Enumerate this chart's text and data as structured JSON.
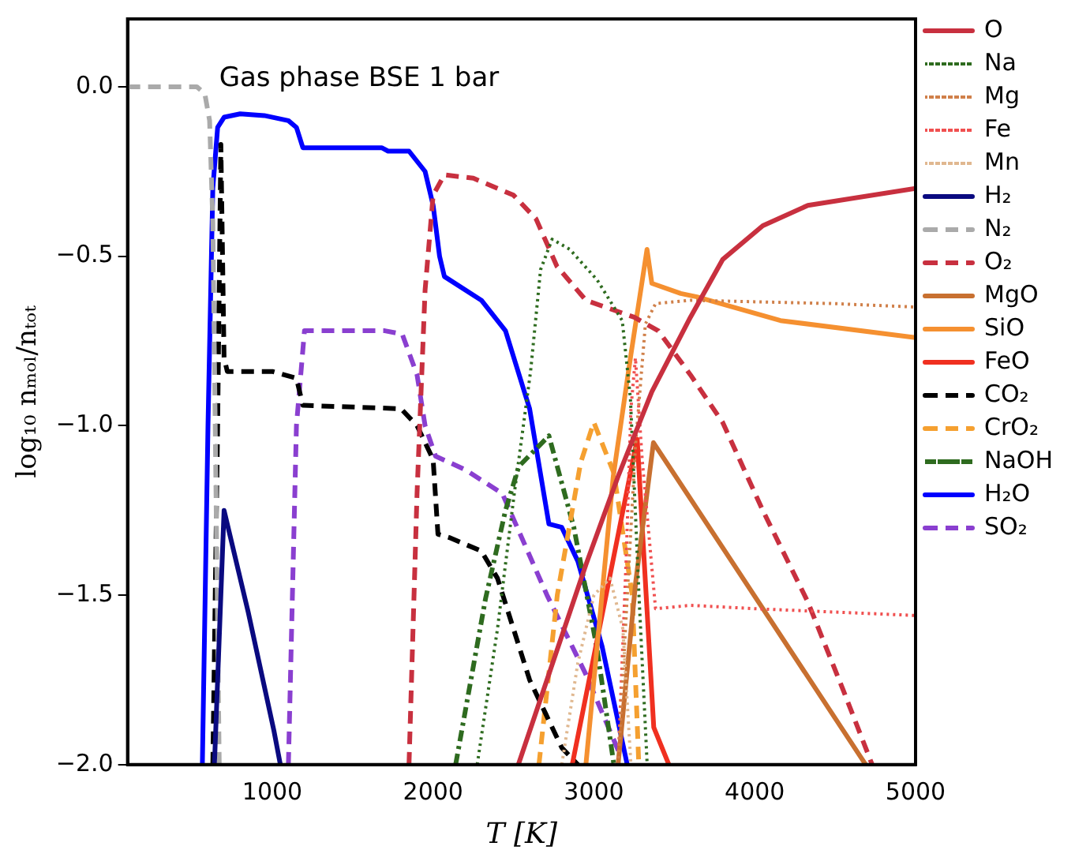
{
  "chart_data": {
    "type": "line",
    "title": "Gas phase BSE 1 bar",
    "xlabel": "T [K]",
    "ylabel": "log₁₀ nₘₒₗ/nₜₒₜ",
    "xlim": [
      100,
      5000
    ],
    "xticks": [
      1000,
      2000,
      3000,
      4000,
      5000
    ],
    "ylim": [
      -2,
      0.2
    ],
    "yticks": [
      {
        "value": -2,
        "label": "−2.0"
      },
      {
        "value": -1.5,
        "label": "−1.5"
      },
      {
        "value": -1,
        "label": "−1.0"
      },
      {
        "value": -0.5,
        "label": "−0.5"
      },
      {
        "value": 0,
        "label": "0.0"
      }
    ],
    "grid": false,
    "legend": "right",
    "marker": "none",
    "series": [
      {
        "name": "O",
        "color": "#c8303f",
        "line_style": "solid",
        "x": [
          2530,
          2950,
          3150,
          3360,
          3600,
          3800,
          4050,
          4330,
          5000
        ],
        "values": [
          -2,
          -1.41,
          -1.15,
          -0.9,
          -0.68,
          -0.51,
          -0.41,
          -0.35,
          -0.3
        ]
      },
      {
        "name": "Na",
        "color": "#2e6b1f",
        "line_style": "dotted",
        "x": [
          2274,
          2400,
          2502,
          2606,
          2668,
          2740,
          2850,
          3020,
          3176,
          3227,
          3280,
          3331
        ],
        "values": [
          -2,
          -1.6,
          -1.21,
          -0.84,
          -0.54,
          -0.45,
          -0.48,
          -0.57,
          -0.69,
          -0.92,
          -1.5,
          -2
        ]
      },
      {
        "name": "Mg",
        "color": "#d0804a",
        "line_style": "dotted",
        "x": [
          3150,
          3258,
          3320,
          3383,
          3600,
          4500,
          5000
        ],
        "values": [
          -2,
          -1.06,
          -0.7,
          -0.64,
          -0.63,
          -0.64,
          -0.65
        ]
      },
      {
        "name": "Fe",
        "color": "#f05050",
        "line_style": "dotted",
        "x": [
          3150,
          3200,
          3230,
          3258,
          3300,
          3383,
          3600,
          4000,
          5000
        ],
        "values": [
          -2,
          -1.4,
          -0.95,
          -0.8,
          -1.1,
          -1.54,
          -1.53,
          -1.54,
          -1.56
        ]
      },
      {
        "name": "Mn",
        "color": "#e0b890",
        "line_style": "dotted",
        "x": [
          2800,
          2900,
          3000,
          3100,
          3180,
          3230
        ],
        "values": [
          -2,
          -1.7,
          -1.5,
          -1.45,
          -1.6,
          -2
        ]
      },
      {
        "name": "H₂",
        "color": "#0a0a80",
        "line_style": "solid",
        "x": [
          640,
          700,
          850,
          1010,
          1050
        ],
        "values": [
          -2,
          -1.25,
          -1.55,
          -1.9,
          -2
        ]
      },
      {
        "name": "N₂",
        "color": "#aaaaaa",
        "line_style": "dashed",
        "x": [
          100,
          530,
          580,
          610,
          630,
          645,
          660,
          670
        ],
        "values": [
          0,
          0,
          -0.02,
          -0.1,
          -0.4,
          -1,
          -1.6,
          -2
        ]
      },
      {
        "name": "O₂",
        "color": "#c8303f",
        "line_style": "dashed",
        "x": [
          1850,
          1900,
          1950,
          2000,
          2070,
          2250,
          2500,
          2640,
          2770,
          2950,
          3250,
          3400,
          3600,
          3800,
          4050,
          4330,
          4550,
          4730
        ],
        "values": [
          -2,
          -1.2,
          -0.6,
          -0.32,
          -0.26,
          -0.27,
          -0.32,
          -0.39,
          -0.53,
          -0.63,
          -0.68,
          -0.72,
          -0.85,
          -0.99,
          -1.25,
          -1.52,
          -1.78,
          -2
        ]
      },
      {
        "name": "MgO",
        "color": "#c87030",
        "line_style": "solid",
        "x": [
          3150,
          3260,
          3370,
          4690
        ],
        "values": [
          -2,
          -1.46,
          -1.05,
          -2
        ]
      },
      {
        "name": "SiO",
        "color": "#f59030",
        "line_style": "solid",
        "x": [
          2950,
          3120,
          3230,
          3330,
          3360,
          3540,
          3640,
          4160,
          5000
        ],
        "values": [
          -2,
          -1.15,
          -0.79,
          -0.48,
          -0.58,
          -0.61,
          -0.62,
          -0.69,
          -0.74
        ]
      },
      {
        "name": "FeO",
        "color": "#f03020",
        "line_style": "solid",
        "x": [
          2865,
          3269,
          3372,
          3466
        ],
        "values": [
          -2,
          -1.04,
          -1.89,
          -2
        ]
      },
      {
        "name": "CO₂",
        "color": "#000000",
        "line_style": "dashed",
        "x": [
          630,
          660,
          680,
          700,
          720,
          1000,
          1150,
          1190,
          1800,
          1900,
          2000,
          2030,
          2100,
          2300,
          2400,
          2500,
          2600,
          2700,
          2800,
          2900
        ],
        "values": [
          -2,
          -1,
          -0.17,
          -0.8,
          -0.84,
          -0.84,
          -0.86,
          -0.94,
          -0.95,
          -1,
          -1.1,
          -1.32,
          -1.33,
          -1.37,
          -1.45,
          -1.6,
          -1.75,
          -1.85,
          -1.95,
          -2
        ]
      },
      {
        "name": "CrO₂",
        "color": "#f5a030",
        "line_style": "dashed",
        "x": [
          2658,
          2772,
          2917,
          2999,
          3124,
          3238,
          3279
        ],
        "values": [
          -2,
          -1.5,
          -1.11,
          -0.99,
          -1.14,
          -1.5,
          -2
        ]
      },
      {
        "name": "NaOH",
        "color": "#2e6b1f",
        "line_style": "dashdot",
        "x": [
          2140,
          2326,
          2450,
          2533,
          2720,
          2875,
          3020,
          3124
        ],
        "values": [
          -2,
          -1.51,
          -1.25,
          -1.12,
          -1.03,
          -1.3,
          -1.66,
          -2
        ]
      },
      {
        "name": "H₂O",
        "color": "#0000ff",
        "line_style": "solid",
        "x": [
          565,
          600,
          630,
          660,
          700,
          800,
          950,
          1100,
          1150,
          1190,
          1680,
          1720,
          1850,
          1950,
          2000,
          2040,
          2070,
          2300,
          2450,
          2600,
          2720,
          2800,
          2900,
          3050,
          3207
        ],
        "values": [
          -2,
          -1,
          -0.3,
          -0.12,
          -0.09,
          -0.08,
          -0.085,
          -0.1,
          -0.12,
          -0.18,
          -0.18,
          -0.19,
          -0.19,
          -0.25,
          -0.35,
          -0.5,
          -0.56,
          -0.63,
          -0.72,
          -0.95,
          -1.29,
          -1.3,
          -1.4,
          -1.65,
          -2
        ]
      },
      {
        "name": "SO₂",
        "color": "#8a3fd0",
        "line_style": "dashed",
        "x": [
          1100,
          1150,
          1200,
          1700,
          1808,
          1900,
          1950,
          2015,
          2200,
          2430,
          2708,
          2946,
          3153
        ],
        "values": [
          -2,
          -1,
          -0.72,
          -0.72,
          -0.73,
          -0.85,
          -1,
          -1.09,
          -1.13,
          -1.2,
          -1.5,
          -1.73,
          -1.96
        ]
      }
    ]
  }
}
